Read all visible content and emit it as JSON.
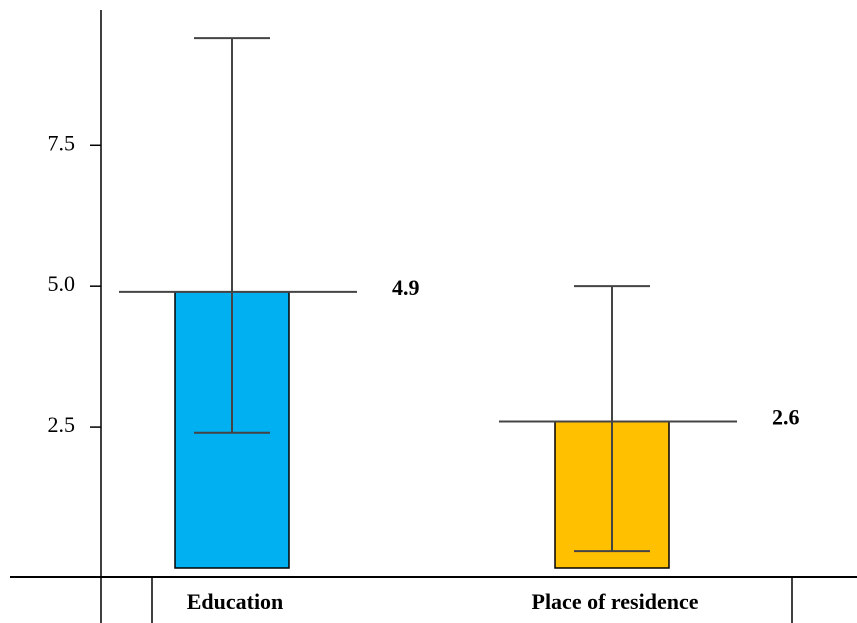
{
  "chart_data": {
    "type": "bar",
    "categories": [
      "Education",
      "Place of residence"
    ],
    "values": [
      4.9,
      2.6
    ],
    "colors": [
      "#00b0f0",
      "#ffc000"
    ],
    "error_low": [
      2.4,
      0.3
    ],
    "error_high": [
      9.4,
      5.0
    ],
    "ylim": [
      0,
      9.9
    ],
    "yticks": [
      {
        "value": 2.5,
        "label": "2.5"
      },
      {
        "value": 5,
        "label": "5.0"
      },
      {
        "value": 7.5,
        "label": "7.5"
      }
    ],
    "grid": false
  }
}
